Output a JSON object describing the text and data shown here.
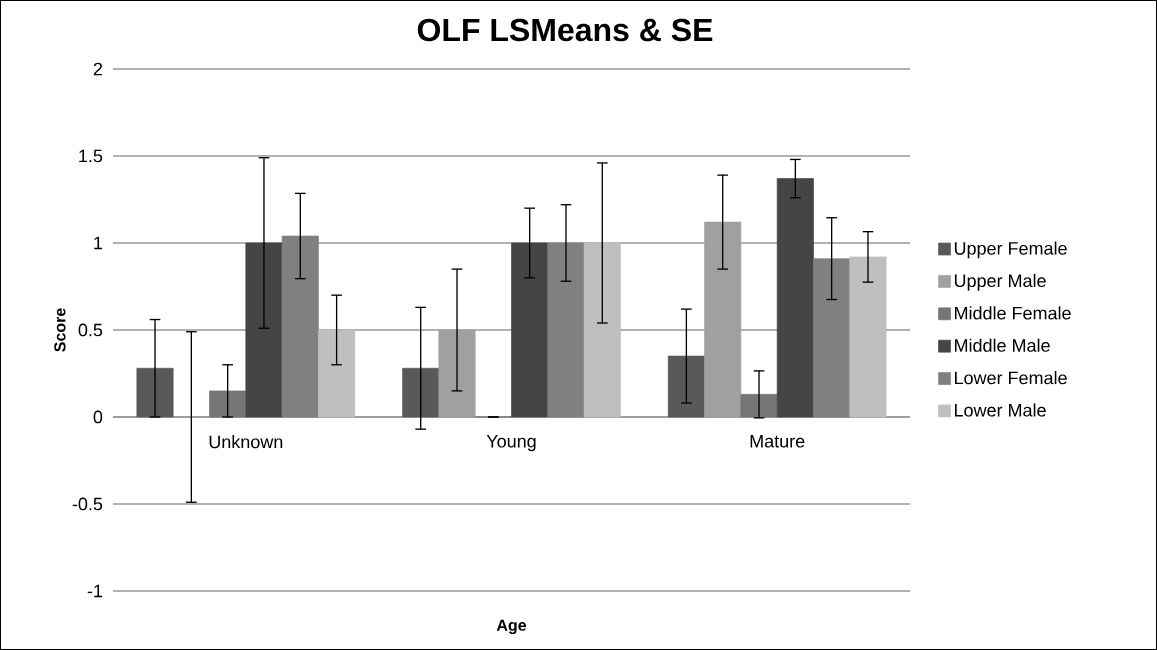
{
  "chart_data": {
    "type": "bar",
    "title": "OLF LSMeans & SE",
    "xlabel": "Age",
    "ylabel": "Score",
    "categories": [
      "Unknown",
      "Young",
      "Mature"
    ],
    "series": [
      {
        "name": "Upper Female",
        "color": "#595959",
        "values": [
          0.28,
          0.28,
          0.35
        ],
        "errors": [
          0.28,
          0.35,
          0.27
        ]
      },
      {
        "name": "Upper Male",
        "color": "#a0a0a0",
        "values": [
          0,
          0.5,
          1.12
        ],
        "errors": [
          0.49,
          0.35,
          0.27
        ]
      },
      {
        "name": "Middle Female",
        "color": "#767676",
        "values": [
          0.15,
          0,
          0.13
        ],
        "errors": [
          0.15,
          0,
          0.135
        ]
      },
      {
        "name": "Middle Male",
        "color": "#454545",
        "values": [
          1.0,
          1.0,
          1.37
        ],
        "errors": [
          0.49,
          0.2,
          0.11
        ]
      },
      {
        "name": "Lower Female",
        "color": "#808080",
        "values": [
          1.04,
          1.0,
          0.91
        ],
        "errors": [
          0.245,
          0.22,
          0.235
        ]
      },
      {
        "name": "Lower Male",
        "color": "#bfbfbf",
        "values": [
          0.5,
          1.0,
          0.92
        ],
        "errors": [
          0.2,
          0.46,
          0.145
        ]
      }
    ],
    "ylim": [
      -1,
      2
    ],
    "yticks": [
      -1,
      -0.5,
      0,
      0.5,
      1,
      1.5,
      2
    ],
    "grid": "y",
    "legend": "right"
  }
}
